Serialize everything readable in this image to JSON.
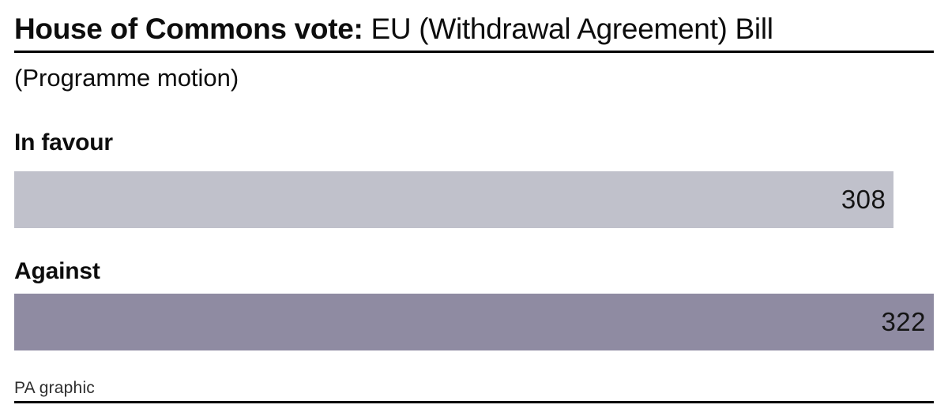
{
  "header": {
    "title_bold": "House of Commons vote:",
    "title_regular": " EU (Withdrawal Agreement) Bill",
    "subtitle": "(Programme motion)"
  },
  "footer": {
    "credit": "PA graphic"
  },
  "chart_data": {
    "type": "bar",
    "orientation": "horizontal",
    "title": "House of Commons vote: EU (Withdrawal Agreement) Bill",
    "subtitle": "(Programme motion)",
    "categories": [
      "In favour",
      "Against"
    ],
    "values": [
      308,
      322
    ],
    "bar_colors": [
      "#c0c1cb",
      "#8f8ba2"
    ],
    "value_label_position": "inside-right",
    "value_label_color": "#141414",
    "xlim": [
      0,
      322
    ],
    "grid": false,
    "legend": false,
    "source": "PA graphic"
  }
}
